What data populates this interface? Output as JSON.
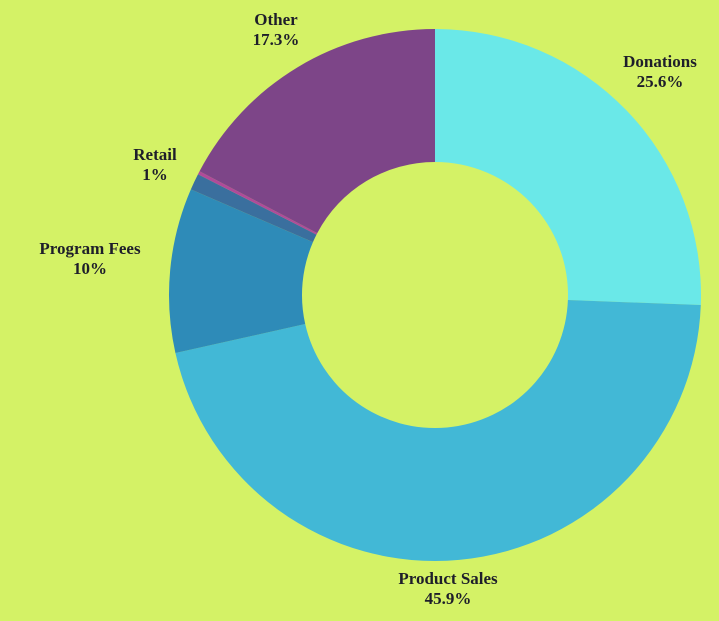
{
  "chart_data": {
    "type": "donut",
    "categories": [
      "Donations",
      "Product Sales",
      "Program Fees",
      "Retail",
      null,
      "Other"
    ],
    "values": [
      25.6,
      45.9,
      10,
      1,
      0.2,
      17.3
    ],
    "value_labels": [
      "25.6%",
      "45.9%",
      "10%",
      "1%",
      null,
      "17.3%"
    ],
    "colors": [
      "#6ae8e8",
      "#42b8d6",
      "#2e8bb8",
      "#3a6f9e",
      "#b04a9a",
      "#7d4588"
    ]
  }
}
